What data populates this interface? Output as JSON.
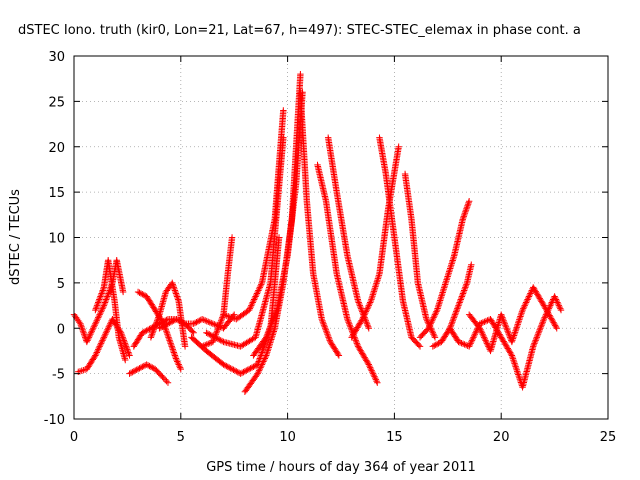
{
  "chart_data": {
    "type": "scatter",
    "title": "dSTEC Iono. truth (kir0, Lon=21, Lat=67, h=497): STEC-STEC_elemax in phase cont. a",
    "xlabel": "GPS time / hours of day 364 of year 2011",
    "ylabel": "dSTEC  / TECUs",
    "xlim": [
      0,
      25
    ],
    "ylim": [
      -10,
      30
    ],
    "xticks": [
      "0",
      "5",
      "10",
      "15",
      "20",
      "25"
    ],
    "yticks": [
      "-10",
      "-5",
      "0",
      "5",
      "10",
      "15",
      "20",
      "25",
      "30"
    ],
    "grid": true,
    "marker": "+",
    "series_color": "#ff0000",
    "series": [
      {
        "x": [
          0.0,
          0.3,
          0.6,
          1.0,
          1.4,
          1.8,
          2.0,
          2.3
        ],
        "y": [
          1.5,
          0.5,
          -1.5,
          0.5,
          2.5,
          5.0,
          7.5,
          4.0
        ]
      },
      {
        "x": [
          0.2,
          0.6,
          1.0,
          1.4,
          1.8,
          2.2,
          2.6
        ],
        "y": [
          -4.8,
          -4.5,
          -3.0,
          -1.0,
          1.0,
          -0.5,
          -3.0
        ]
      },
      {
        "x": [
          1.0,
          1.4,
          1.6,
          1.9,
          2.1,
          2.4
        ],
        "y": [
          2.0,
          4.5,
          7.5,
          3.0,
          -1.0,
          -3.5
        ]
      },
      {
        "x": [
          2.6,
          3.0,
          3.4,
          3.8,
          4.2,
          4.4
        ],
        "y": [
          -5.0,
          -4.5,
          -4.0,
          -4.5,
          -5.5,
          -6.0
        ]
      },
      {
        "x": [
          2.8,
          3.2,
          3.6,
          4.0,
          4.4,
          4.8,
          5.2
        ],
        "y": [
          -2.0,
          -0.5,
          0.0,
          0.5,
          1.0,
          1.0,
          0.5
        ]
      },
      {
        "x": [
          3.0,
          3.4,
          3.8,
          4.2,
          4.5,
          4.8,
          5.0
        ],
        "y": [
          4.0,
          3.5,
          2.0,
          0.5,
          -1.5,
          -3.5,
          -4.5
        ]
      },
      {
        "x": [
          3.6,
          4.0,
          4.3,
          4.6,
          4.9,
          5.2
        ],
        "y": [
          -1.0,
          1.5,
          4.0,
          5.0,
          3.0,
          -2.0
        ]
      },
      {
        "x": [
          4.0,
          4.4,
          4.8,
          5.2,
          5.6
        ],
        "y": [
          0.0,
          0.5,
          1.0,
          0.5,
          -0.5
        ]
      },
      {
        "x": [
          5.2,
          5.6,
          6.0,
          6.5,
          7.0,
          7.5
        ],
        "y": [
          0.5,
          0.5,
          1.0,
          0.5,
          0.0,
          1.5
        ]
      },
      {
        "x": [
          6.0,
          6.5,
          7.0,
          7.2,
          7.4
        ],
        "y": [
          -2.0,
          -1.5,
          1.5,
          6.0,
          10.0
        ]
      },
      {
        "x": [
          5.5,
          6.2,
          7.0,
          7.8,
          8.6,
          9.2,
          9.6
        ],
        "y": [
          -1.0,
          -2.5,
          -4.0,
          -5.0,
          -4.0,
          0.0,
          10.0
        ]
      },
      {
        "x": [
          6.2,
          7.0,
          7.8,
          8.5,
          9.2,
          9.8
        ],
        "y": [
          -0.5,
          -1.5,
          -2.0,
          -1.0,
          5.0,
          21.0
        ]
      },
      {
        "x": [
          7.0,
          7.6,
          8.2,
          8.8,
          9.4,
          9.8
        ],
        "y": [
          1.5,
          1.0,
          2.0,
          5.0,
          12.0,
          24.0
        ]
      },
      {
        "x": [
          8.0,
          8.6,
          9.0,
          9.4,
          9.8,
          10.2,
          10.6
        ],
        "y": [
          -7.0,
          -5.0,
          -3.0,
          0.0,
          5.0,
          12.0,
          28.0
        ]
      },
      {
        "x": [
          8.4,
          9.0,
          9.5,
          10.0,
          10.4,
          10.7
        ],
        "y": [
          -3.0,
          -1.0,
          2.0,
          8.0,
          16.0,
          26.0
        ]
      },
      {
        "x": [
          10.6,
          10.9,
          11.2,
          11.6,
          12.0,
          12.4
        ],
        "y": [
          26.0,
          14.0,
          6.0,
          1.0,
          -1.5,
          -3.0
        ]
      },
      {
        "x": [
          11.4,
          11.8,
          12.3,
          12.8,
          13.3,
          13.8,
          14.2
        ],
        "y": [
          18.0,
          14.0,
          6.0,
          1.0,
          -2.0,
          -4.0,
          -6.0
        ]
      },
      {
        "x": [
          11.9,
          12.3,
          12.8,
          13.3,
          13.8
        ],
        "y": [
          21.0,
          15.0,
          8.0,
          3.0,
          0.0
        ]
      },
      {
        "x": [
          13.0,
          13.5,
          13.9,
          14.3,
          14.7,
          15.2
        ],
        "y": [
          -1.0,
          1.0,
          3.0,
          6.0,
          13.0,
          20.0
        ]
      },
      {
        "x": [
          14.3,
          14.6,
          15.0,
          15.4,
          15.8,
          16.2
        ],
        "y": [
          21.0,
          17.0,
          10.0,
          3.0,
          -1.0,
          -2.0
        ]
      },
      {
        "x": [
          15.5,
          15.8,
          16.1,
          16.5,
          16.9
        ],
        "y": [
          17.0,
          12.0,
          5.0,
          1.0,
          -1.0
        ]
      },
      {
        "x": [
          16.2,
          16.6,
          17.0,
          17.4,
          17.8,
          18.2,
          18.5
        ],
        "y": [
          -1.0,
          0.0,
          2.0,
          5.0,
          8.0,
          12.0,
          14.0
        ]
      },
      {
        "x": [
          16.8,
          17.2,
          17.6,
          18.0,
          18.4,
          18.6
        ],
        "y": [
          -2.0,
          -1.5,
          0.0,
          2.5,
          5.0,
          7.0
        ]
      },
      {
        "x": [
          17.6,
          18.0,
          18.5,
          19.0,
          19.5,
          20.0,
          20.5,
          21.0,
          21.5,
          22.0,
          22.5,
          22.8
        ],
        "y": [
          0.0,
          -1.5,
          -2.0,
          0.5,
          1.0,
          -1.0,
          -3.0,
          -6.5,
          -2.0,
          1.0,
          3.5,
          2.0
        ]
      },
      {
        "x": [
          18.5,
          19.0,
          19.5,
          20.0,
          20.5,
          21.0,
          21.5,
          22.0,
          22.6
        ],
        "y": [
          1.5,
          0.0,
          -2.5,
          1.5,
          -1.5,
          2.0,
          4.5,
          2.5,
          0.0
        ]
      }
    ]
  }
}
